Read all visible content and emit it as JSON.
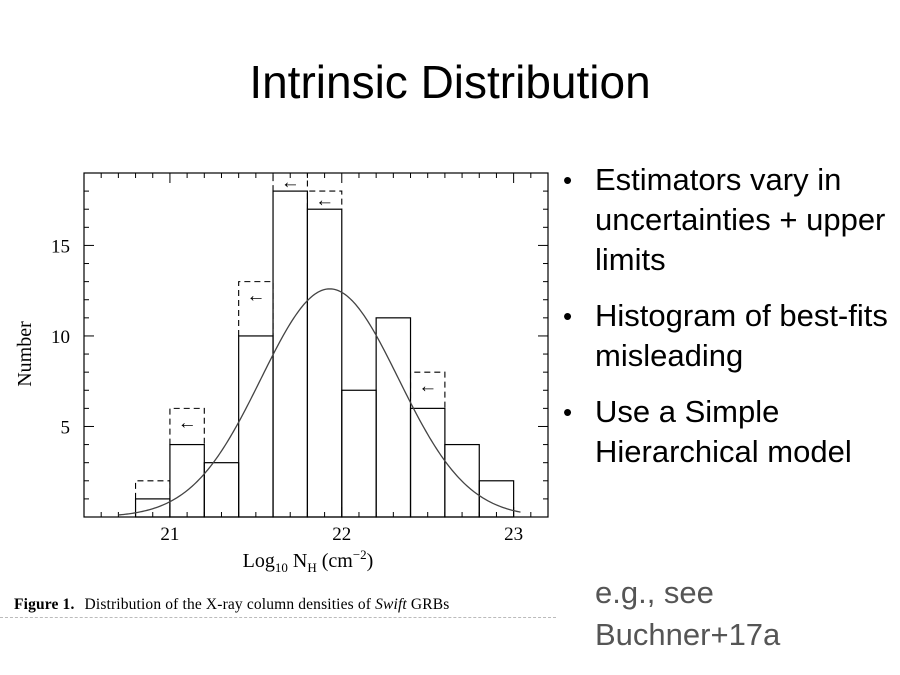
{
  "slide": {
    "title": "Intrinsic Distribution"
  },
  "bullets": [
    {
      "text": "Estimators vary in uncertainties + upper limits"
    },
    {
      "text": "Histogram of best-fits misleading"
    },
    {
      "text": "Use a Simple Hierarchical model"
    }
  ],
  "note": "e.g., see Buchner+17a",
  "figure": {
    "caption_label": "Figure 1.",
    "caption_text_a": "Distribution of the X-ray column densities of",
    "caption_text_italic": "Swift",
    "caption_text_b": "GRBs",
    "upper_limit_arrow": "←",
    "colors": {
      "axes": "#000000",
      "fit": "#444444",
      "note_text": "#555555"
    }
  },
  "chart_data": {
    "type": "histogram",
    "xlabel": "Log10 NH (cm−2)",
    "xlabel_parts": {
      "prefix": "Log",
      "sub1": "10",
      "mid": " N",
      "sub2": "H",
      "unit": " (cm",
      "sup": "−2",
      "end": ")"
    },
    "ylabel": "Number",
    "xlim": [
      20.5,
      23.2
    ],
    "ylim": [
      0,
      19
    ],
    "x_ticks": [
      21,
      22,
      23
    ],
    "y_ticks": [
      5,
      10,
      15
    ],
    "bin_edges": [
      20.8,
      21.0,
      21.2,
      21.4,
      21.6,
      21.8,
      22.0,
      22.2,
      22.4,
      22.6,
      22.8,
      23.0
    ],
    "best_fit_counts": [
      1,
      4,
      3,
      10,
      18,
      17,
      7,
      11,
      6,
      4,
      2
    ],
    "with_upper_limits_counts": [
      2,
      6,
      3,
      13,
      19,
      18,
      7,
      11,
      8,
      4,
      2
    ],
    "upper_limit_arrow_bins": [
      1,
      3,
      4,
      5,
      8
    ],
    "gaussian_fit": {
      "mean": 21.93,
      "sigma": 0.4,
      "peak": 12.6
    },
    "grid": false,
    "x_minor_step": 0.1,
    "y_minor_step": 1
  }
}
